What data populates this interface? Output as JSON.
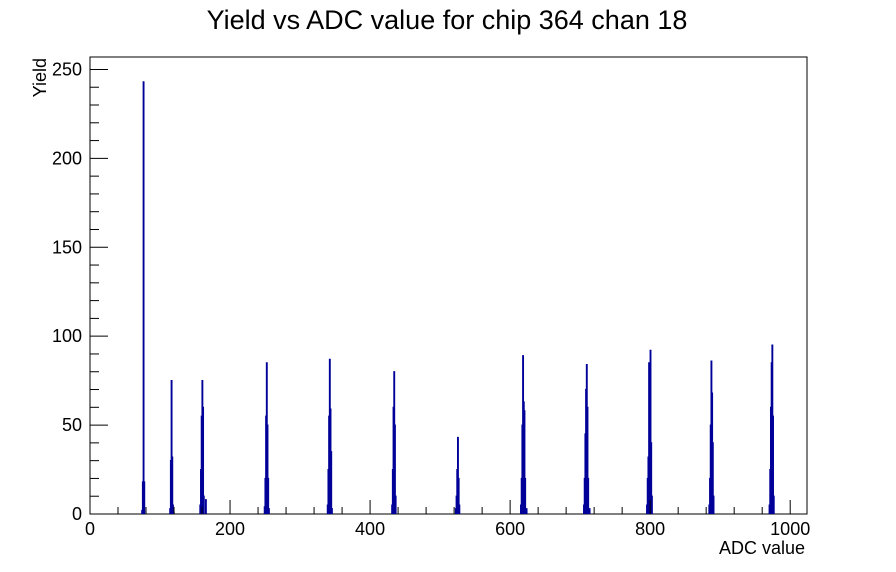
{
  "chart_data": {
    "type": "bar",
    "title": "Yield vs ADC value for chip 364 chan 18",
    "xlabel": "ADC value",
    "ylabel": "Yield",
    "xlim": [
      0,
      1024
    ],
    "ylim": [
      0,
      257
    ],
    "grid": false,
    "legend": "none",
    "series_color": "#000099",
    "x_ticks": [
      0,
      200,
      400,
      600,
      800,
      1000
    ],
    "y_ticks": [
      0,
      50,
      100,
      150,
      200,
      250
    ],
    "x_tick_labels": [
      "0",
      "200",
      "400",
      "600",
      "800",
      "1000"
    ],
    "y_tick_labels": [
      "0",
      "50",
      "100",
      "150",
      "200",
      "250"
    ],
    "peaks": [
      {
        "x": [
          74,
          75,
          76,
          77
        ],
        "y": [
          2,
          18,
          243,
          18
        ]
      },
      {
        "x": [
          114,
          115,
          116,
          117,
          118,
          119
        ],
        "y": [
          3,
          30,
          75,
          32,
          5,
          1
        ]
      },
      {
        "x": [
          157,
          158,
          159,
          160,
          161,
          162,
          165
        ],
        "y": [
          5,
          25,
          55,
          75,
          60,
          10,
          8
        ]
      },
      {
        "x": [
          249,
          250,
          251,
          252,
          253,
          254,
          255
        ],
        "y": [
          4,
          20,
          55,
          85,
          50,
          20,
          3
        ]
      },
      {
        "x": [
          339,
          340,
          341,
          342,
          343,
          344,
          345
        ],
        "y": [
          5,
          25,
          55,
          87,
          59,
          35,
          3
        ]
      },
      {
        "x": [
          431,
          432,
          433,
          434,
          435,
          436
        ],
        "y": [
          5,
          25,
          60,
          80,
          50,
          10
        ]
      },
      {
        "x": [
          522,
          523,
          524,
          525,
          526,
          527
        ],
        "y": [
          3,
          10,
          25,
          43,
          20,
          5
        ]
      },
      {
        "x": [
          615,
          616,
          617,
          618,
          619,
          620,
          621,
          623
        ],
        "y": [
          5,
          20,
          50,
          89,
          63,
          58,
          20,
          3
        ]
      },
      {
        "x": [
          705,
          706,
          707,
          708,
          709,
          710,
          711,
          713
        ],
        "y": [
          5,
          20,
          45,
          70,
          84,
          60,
          20,
          3
        ]
      },
      {
        "x": [
          795,
          796,
          797,
          798,
          799,
          800,
          801,
          802
        ],
        "y": [
          5,
          20,
          32,
          85,
          60,
          92,
          40,
          10
        ]
      },
      {
        "x": [
          884,
          885,
          886,
          887,
          888,
          889,
          890
        ],
        "y": [
          5,
          20,
          50,
          86,
          68,
          40,
          10
        ]
      },
      {
        "x": [
          970,
          971,
          972,
          973,
          974,
          975,
          976
        ],
        "y": [
          5,
          25,
          60,
          85,
          95,
          55,
          10
        ]
      }
    ]
  }
}
